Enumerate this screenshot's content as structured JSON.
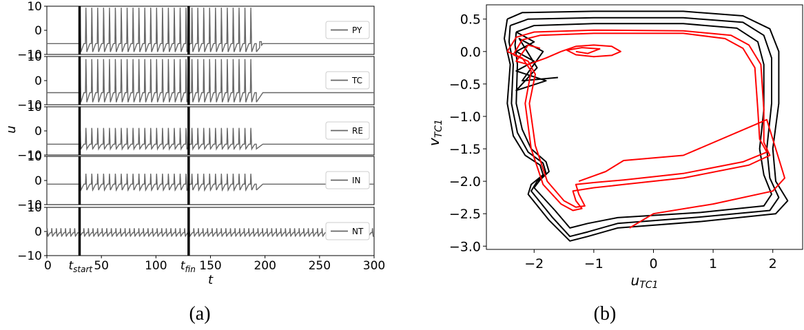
{
  "panel_a_caption": "(a)",
  "panel_b_caption": "(b)",
  "chart_data": [
    {
      "id": "a",
      "type": "line",
      "xlabel": "t",
      "ylabel": "u",
      "xlim": [
        0,
        300
      ],
      "x_ticks": [
        {
          "value": 0,
          "label": "0"
        },
        {
          "value": 50,
          "label": "50"
        },
        {
          "value": 100,
          "label": "100"
        },
        {
          "value": 150,
          "label": "150"
        },
        {
          "value": 200,
          "label": "200"
        },
        {
          "value": 250,
          "label": "250"
        },
        {
          "value": 300,
          "label": "300"
        }
      ],
      "x_markers": [
        {
          "value": 30,
          "label_main": "t",
          "label_sub": "start"
        },
        {
          "value": 130,
          "label_main": "t",
          "label_sub": "fin"
        }
      ],
      "ylim": [
        -10,
        10
      ],
      "y_ticks": [
        {
          "value": 10,
          "label": "10"
        },
        {
          "value": 0,
          "label": "0"
        },
        {
          "value": -10,
          "label": "−10"
        }
      ],
      "legend_placement": "right",
      "line_color": "#666666",
      "marker_color": "#000000",
      "series": [
        {
          "name": "PY",
          "rest": -5.5,
          "spike_start": 30,
          "spike_end": 192,
          "period": 5.4,
          "peak": 10,
          "trough": -9,
          "after": -5.5,
          "bump_after": true
        },
        {
          "name": "TC",
          "rest": -5.0,
          "spike_start": 30,
          "spike_end": 192,
          "period": 5.4,
          "peak": 9.5,
          "trough": -9,
          "after": -5.0,
          "bump_after": false
        },
        {
          "name": "RE",
          "rest": -5.5,
          "spike_start": 30,
          "spike_end": 192,
          "period": 5.4,
          "peak": 1.5,
          "trough": -7.5,
          "after": -5.5,
          "bump_after": false
        },
        {
          "name": "IN",
          "rest": -1.5,
          "spike_start": 30,
          "spike_end": 192,
          "period": 5.4,
          "peak": 3.0,
          "trough": -4.0,
          "after": -1.5,
          "bump_after": false
        },
        {
          "name": "NT",
          "rest": -0.5,
          "spike_start": 0,
          "spike_end": 300,
          "period": 4.2,
          "peak": 1.5,
          "trough": -2.0,
          "after": -0.5,
          "bump_after": false
        }
      ]
    },
    {
      "id": "b",
      "type": "line",
      "xlabel_main": "u",
      "xlabel_sub": "TC1",
      "ylabel_main": "v",
      "ylabel_sub": "TC1",
      "xlim": [
        -2.8,
        2.5
      ],
      "ylim": [
        -3.05,
        0.72
      ],
      "x_ticks": [
        {
          "value": -2,
          "label": "−2"
        },
        {
          "value": -1,
          "label": "−1"
        },
        {
          "value": 0,
          "label": "0"
        },
        {
          "value": 1,
          "label": "1"
        },
        {
          "value": 2,
          "label": "2"
        }
      ],
      "y_ticks": [
        {
          "value": 0.5,
          "label": "0.5"
        },
        {
          "value": 0.0,
          "label": "0.0"
        },
        {
          "value": -0.5,
          "label": "−0.5"
        },
        {
          "value": -1.0,
          "label": "−1.0"
        },
        {
          "value": -1.5,
          "label": "−1.5"
        },
        {
          "value": -2.0,
          "label": "−2.0"
        },
        {
          "value": -2.5,
          "label": "−2.5"
        },
        {
          "value": -3.0,
          "label": "−3.0"
        }
      ],
      "series": [
        {
          "color": "#000000",
          "points": [
            [
              -2.45,
              0.5
            ],
            [
              -2.2,
              0.6
            ],
            [
              -1.0,
              0.62
            ],
            [
              0.5,
              0.62
            ],
            [
              1.5,
              0.55
            ],
            [
              1.95,
              0.35
            ],
            [
              2.1,
              0.0
            ],
            [
              2.1,
              -0.8
            ],
            [
              2.0,
              -1.5
            ],
            [
              2.05,
              -2.0
            ],
            [
              2.25,
              -2.3
            ],
            [
              2.05,
              -2.5
            ],
            [
              0.8,
              -2.62
            ],
            [
              -0.6,
              -2.72
            ],
            [
              -1.1,
              -2.85
            ],
            [
              -1.4,
              -2.92
            ],
            [
              -1.75,
              -2.6
            ],
            [
              -2.1,
              -2.2
            ],
            [
              -2.05,
              -2.05
            ],
            [
              -1.85,
              -1.9
            ],
            [
              -1.9,
              -1.75
            ],
            [
              -2.15,
              -1.6
            ],
            [
              -2.35,
              -1.3
            ],
            [
              -2.45,
              -0.8
            ],
            [
              -2.4,
              -0.2
            ],
            [
              -2.5,
              0.2
            ],
            [
              -2.45,
              0.5
            ]
          ]
        },
        {
          "color": "#000000",
          "points": [
            [
              -2.4,
              0.4
            ],
            [
              -2.1,
              0.5
            ],
            [
              -1.0,
              0.52
            ],
            [
              0.5,
              0.52
            ],
            [
              1.5,
              0.45
            ],
            [
              1.85,
              0.25
            ],
            [
              1.98,
              -0.1
            ],
            [
              1.98,
              -0.8
            ],
            [
              1.9,
              -1.5
            ],
            [
              1.95,
              -1.95
            ],
            [
              2.1,
              -2.25
            ],
            [
              1.95,
              -2.45
            ],
            [
              0.8,
              -2.55
            ],
            [
              -0.6,
              -2.65
            ],
            [
              -1.1,
              -2.78
            ],
            [
              -1.4,
              -2.85
            ],
            [
              -1.7,
              -2.55
            ],
            [
              -2.05,
              -2.15
            ],
            [
              -1.95,
              -2.0
            ],
            [
              -1.8,
              -1.88
            ],
            [
              -1.85,
              -1.72
            ],
            [
              -2.1,
              -1.55
            ],
            [
              -2.28,
              -1.25
            ],
            [
              -2.38,
              -0.8
            ],
            [
              -2.35,
              -0.2
            ],
            [
              -2.42,
              0.15
            ],
            [
              -2.4,
              0.4
            ]
          ]
        },
        {
          "color": "#000000",
          "points": [
            [
              -2.3,
              0.3
            ],
            [
              -2.0,
              0.4
            ],
            [
              -1.0,
              0.43
            ],
            [
              0.5,
              0.43
            ],
            [
              1.4,
              0.36
            ],
            [
              1.75,
              0.15
            ],
            [
              1.85,
              -0.2
            ],
            [
              1.85,
              -0.9
            ],
            [
              1.78,
              -1.5
            ],
            [
              1.85,
              -1.9
            ],
            [
              1.98,
              -2.2
            ],
            [
              1.85,
              -2.38
            ],
            [
              0.8,
              -2.48
            ],
            [
              -0.6,
              -2.56
            ],
            [
              -1.1,
              -2.65
            ],
            [
              -1.4,
              -2.72
            ],
            [
              -1.65,
              -2.45
            ],
            [
              -2.0,
              -2.1
            ],
            [
              -1.9,
              -1.98
            ],
            [
              -1.75,
              -1.85
            ],
            [
              -1.8,
              -1.7
            ],
            [
              -2.05,
              -1.5
            ],
            [
              -2.2,
              -1.2
            ],
            [
              -2.3,
              -0.8
            ],
            [
              -2.28,
              -0.2
            ],
            [
              -2.32,
              0.1
            ],
            [
              -2.3,
              0.3
            ]
          ]
        },
        {
          "color": "#000000",
          "points": [
            [
              -2.3,
              0.3
            ],
            [
              -2.0,
              0.15
            ],
            [
              -2.3,
              0.0
            ],
            [
              -2.0,
              -0.15
            ],
            [
              -2.3,
              -0.3
            ],
            [
              -1.8,
              -0.45
            ],
            [
              -2.3,
              -0.6
            ],
            [
              -1.95,
              -0.25
            ],
            [
              -2.25,
              0.2
            ],
            [
              -1.85,
              0.0
            ],
            [
              -2.2,
              -0.45
            ],
            [
              -1.6,
              -0.4
            ]
          ]
        },
        {
          "color": "#ff0000",
          "points": [
            [
              -2.45,
              0.0
            ],
            [
              -2.3,
              0.22
            ],
            [
              -2.0,
              0.3
            ],
            [
              -1.0,
              0.33
            ],
            [
              0.5,
              0.32
            ],
            [
              1.3,
              0.25
            ],
            [
              1.6,
              0.1
            ],
            [
              1.8,
              -0.2
            ],
            [
              1.85,
              -0.9
            ],
            [
              1.85,
              -1.4
            ],
            [
              1.95,
              -1.6
            ],
            [
              1.6,
              -1.75
            ],
            [
              0.5,
              -1.95
            ],
            [
              -0.5,
              -2.05
            ],
            [
              -1.0,
              -2.1
            ],
            [
              -1.35,
              -2.15
            ],
            [
              -1.3,
              -2.3
            ],
            [
              -1.2,
              -2.42
            ],
            [
              -1.35,
              -2.45
            ],
            [
              -1.55,
              -2.35
            ],
            [
              -1.85,
              -2.05
            ],
            [
              -2.05,
              -1.5
            ],
            [
              -2.15,
              -0.8
            ],
            [
              -2.05,
              -0.3
            ],
            [
              -2.2,
              -0.1
            ],
            [
              -2.45,
              0.0
            ]
          ]
        },
        {
          "color": "#ff0000",
          "points": [
            [
              -2.35,
              -0.05
            ],
            [
              -2.2,
              0.18
            ],
            [
              -1.9,
              0.25
            ],
            [
              -1.0,
              0.28
            ],
            [
              0.5,
              0.28
            ],
            [
              1.2,
              0.2
            ],
            [
              1.5,
              0.05
            ],
            [
              1.7,
              -0.25
            ],
            [
              1.75,
              -0.9
            ],
            [
              1.78,
              -1.35
            ],
            [
              1.9,
              -1.55
            ],
            [
              1.5,
              -1.7
            ],
            [
              0.5,
              -1.88
            ],
            [
              -0.5,
              -1.98
            ],
            [
              -1.0,
              -2.02
            ],
            [
              -1.3,
              -2.05
            ],
            [
              -1.25,
              -2.2
            ],
            [
              -1.15,
              -2.38
            ],
            [
              -1.3,
              -2.4
            ],
            [
              -1.5,
              -2.3
            ],
            [
              -1.78,
              -2.0
            ],
            [
              -1.98,
              -1.45
            ],
            [
              -2.08,
              -0.8
            ],
            [
              -1.98,
              -0.35
            ],
            [
              -2.1,
              -0.15
            ],
            [
              -2.35,
              -0.05
            ]
          ]
        },
        {
          "color": "#ff0000",
          "points": [
            [
              -1.55,
              0.0
            ],
            [
              -1.3,
              0.08
            ],
            [
              -1.0,
              0.1
            ],
            [
              -0.7,
              0.08
            ],
            [
              -0.55,
              0.0
            ],
            [
              -0.7,
              -0.06
            ],
            [
              -1.0,
              -0.08
            ],
            [
              -1.3,
              -0.05
            ],
            [
              -1.45,
              0.02
            ],
            [
              -1.2,
              0.06
            ],
            [
              -0.9,
              0.04
            ],
            [
              -1.1,
              -0.03
            ],
            [
              -1.3,
              0.0
            ]
          ]
        },
        {
          "color": "#ff0000",
          "points": [
            [
              -1.55,
              0.0
            ],
            [
              -1.8,
              -0.1
            ],
            [
              -2.1,
              -0.2
            ],
            [
              -2.3,
              -0.15
            ],
            [
              -2.1,
              0.1
            ],
            [
              -1.9,
              0.05
            ]
          ]
        },
        {
          "color": "#ff0000",
          "points": [
            [
              -1.25,
              -2.0
            ],
            [
              -0.8,
              -1.85
            ],
            [
              -0.5,
              -1.68
            ],
            [
              0.5,
              -1.6
            ],
            [
              1.9,
              -1.05
            ],
            [
              2.05,
              -1.5
            ],
            [
              2.2,
              -1.95
            ],
            [
              2.0,
              -2.15
            ],
            [
              1.0,
              -2.35
            ],
            [
              0.0,
              -2.5
            ],
            [
              -0.4,
              -2.72
            ]
          ]
        }
      ]
    }
  ]
}
